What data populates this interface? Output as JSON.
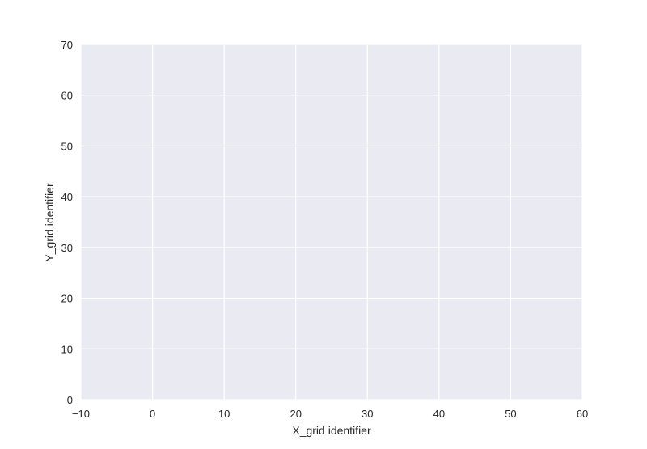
{
  "chart_data": {
    "type": "scatter",
    "title": "",
    "xlabel": "X_grid identifier",
    "ylabel": "Y_grid identifier",
    "xlim": [
      -10,
      60
    ],
    "ylim": [
      0,
      70
    ],
    "x_ticks": [
      -10,
      0,
      10,
      20,
      30,
      40,
      50,
      60
    ],
    "y_ticks": [
      0,
      10,
      20,
      30,
      40,
      50,
      60,
      70
    ],
    "x_tick_labels": [
      "−10",
      "0",
      "10",
      "20",
      "30",
      "40",
      "50",
      "60"
    ],
    "y_tick_labels": [
      "0",
      "10",
      "20",
      "30",
      "40",
      "50",
      "60",
      "70"
    ],
    "grid": true,
    "legend": "none",
    "background_color": "#EAEAF2",
    "grid_color": "#FFFFFF",
    "marker_edge_color": "#333333",
    "color_levels": [
      "#FFFFFF",
      "#D6D6D6",
      "#A8A8A8",
      "#6E6E6E",
      "#3A3A3A",
      "#111111"
    ],
    "points": []
  }
}
